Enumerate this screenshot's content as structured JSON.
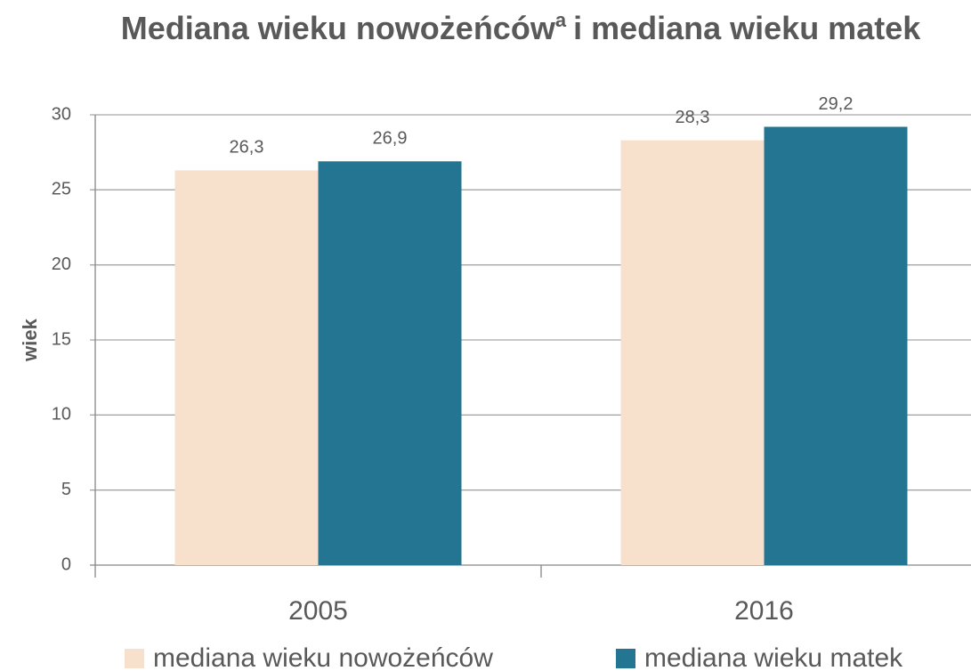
{
  "chart_data": {
    "type": "bar",
    "title": "Mediana wieku nowożeńców",
    "title_superscript": "a",
    "title_rest": "i mediana wieku matek",
    "y_label": "wiek",
    "categories": [
      "2005",
      "2016"
    ],
    "series": [
      {
        "name": "mediana wieku nowożeńców",
        "color": "#f8e1cc",
        "values": [
          26.3,
          28.3
        ],
        "value_labels": [
          "26,3",
          "28,3"
        ]
      },
      {
        "name": "mediana wieku matek",
        "color": "#237592",
        "values": [
          26.9,
          29.2
        ],
        "value_labels": [
          "26,9",
          "29,2"
        ]
      }
    ],
    "ylim": [
      0,
      30
    ],
    "yticks": [
      0,
      5,
      10,
      15,
      20,
      25,
      30
    ],
    "grid": true,
    "legend": "bottom"
  }
}
